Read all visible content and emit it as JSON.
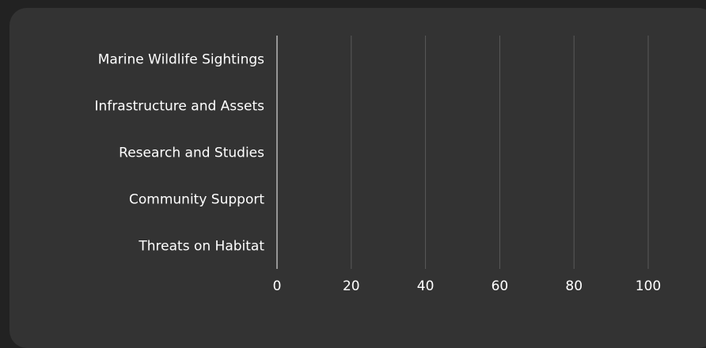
{
  "chart_data": {
    "type": "bar",
    "orientation": "horizontal",
    "title": "",
    "xlabel": "",
    "ylabel": "",
    "categories": [
      "Marine Wildlife Sightings",
      "Infrastructure and Assets",
      "Research and Studies",
      "Community Support",
      "Threats on Habitat"
    ],
    "values": [
      0,
      0,
      0,
      0,
      0
    ],
    "xlim": [
      0,
      100
    ],
    "x_ticks": [
      "0",
      "20",
      "40",
      "60",
      "80",
      "100"
    ],
    "grid": true,
    "colors": {
      "background": "#222222",
      "card": "#333333",
      "text": "#ffffff",
      "grid": "#5a5a5a",
      "axis": "#d9d9d9",
      "bar": "#6ea8fe"
    }
  }
}
